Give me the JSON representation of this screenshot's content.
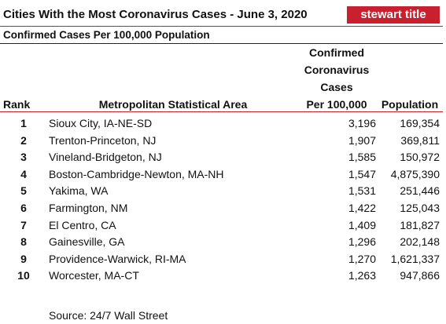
{
  "header": {
    "title": "Cities With the Most Coronavirus Cases - June 3, 2020",
    "brand": "stewart title",
    "subtitle": "Confirmed Cases Per 100,000 Population"
  },
  "table": {
    "columns": [
      "Rank",
      "Metropolitan Statistical Area",
      [
        "Confirmed",
        "Coronavirus",
        "Cases",
        "Per 100,000"
      ],
      "Population"
    ],
    "rows": [
      [
        "1",
        "Sioux City, IA-NE-SD",
        "3,196",
        "169,354"
      ],
      [
        "2",
        "Trenton-Princeton, NJ",
        "1,907",
        "369,811"
      ],
      [
        "3",
        "Vineland-Bridgeton, NJ",
        "1,585",
        "150,972"
      ],
      [
        "4",
        "Boston-Cambridge-Newton, MA-NH",
        "1,547",
        "4,875,390"
      ],
      [
        "5",
        "Yakima, WA",
        "1,531",
        "251,446"
      ],
      [
        "6",
        "Farmington, NM",
        "1,422",
        "125,043"
      ],
      [
        "7",
        "El Centro, CA",
        "1,409",
        "181,827"
      ],
      [
        "8",
        "Gainesville, GA",
        "1,296",
        "202,148"
      ],
      [
        "9",
        "Providence-Warwick, RI-MA",
        "1,270",
        "1,621,337"
      ],
      [
        "10",
        "Worcester, MA-CT",
        "1,263",
        "947,866"
      ]
    ]
  },
  "source": "Source: 24/7 Wall Street"
}
